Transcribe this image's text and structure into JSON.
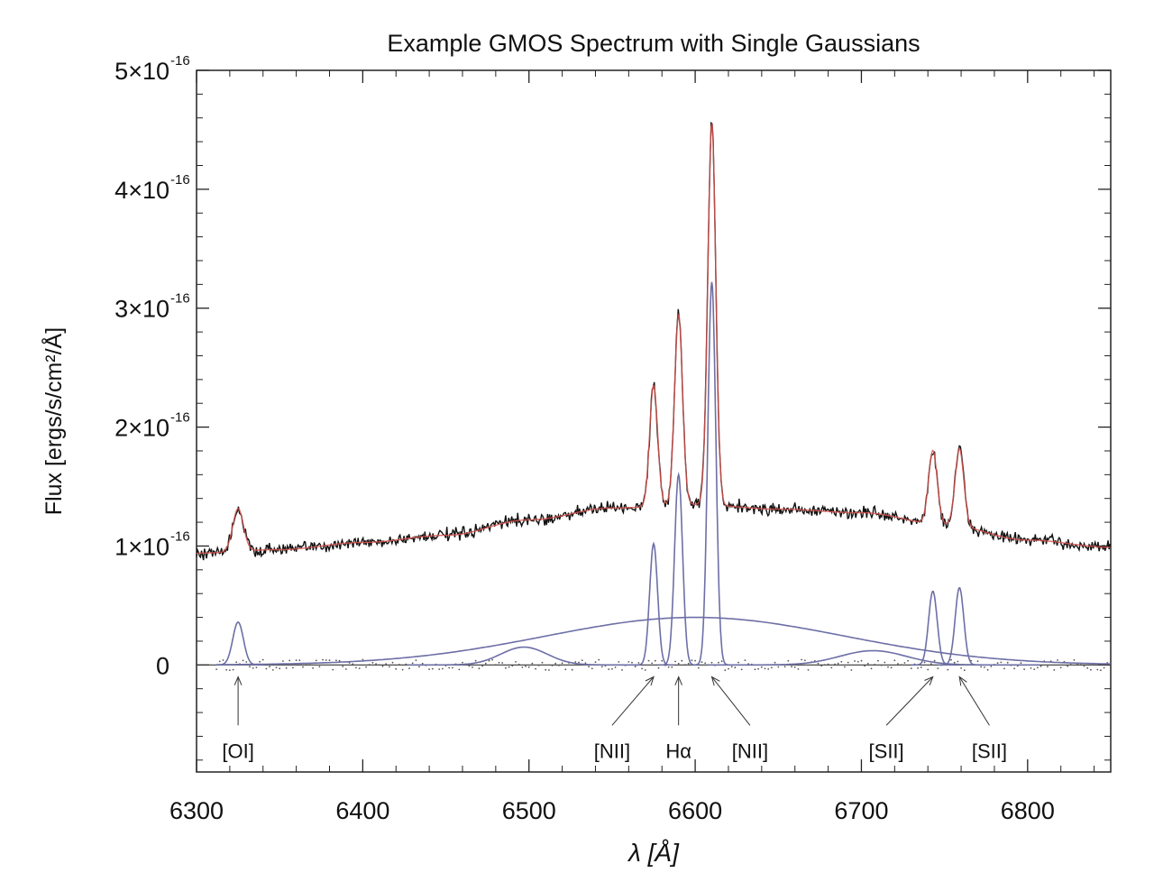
{
  "chart_data": {
    "type": "line",
    "title": "Example GMOS Spectrum with Single Gaussians",
    "xlabel": "λ [Å]",
    "ylabel": "Flux [ergs/s/cm²/Å]",
    "xlim": [
      6300,
      6850
    ],
    "ylim": [
      -0.9,
      5.0
    ],
    "y_unit_exponent": "-16",
    "x_ticks": [
      {
        "value": 6300,
        "label": "6300"
      },
      {
        "value": 6400,
        "label": "6400"
      },
      {
        "value": 6500,
        "label": "6500"
      },
      {
        "value": 6600,
        "label": "6600"
      },
      {
        "value": 6700,
        "label": "6700"
      },
      {
        "value": 6800,
        "label": "6800"
      }
    ],
    "y_ticks": [
      {
        "value": 0,
        "label": "0",
        "exp": ""
      },
      {
        "value": 1,
        "label": "1×10",
        "exp": "-16"
      },
      {
        "value": 2,
        "label": "2×10",
        "exp": "-16"
      },
      {
        "value": 3,
        "label": "3×10",
        "exp": "-16"
      },
      {
        "value": 4,
        "label": "4×10",
        "exp": "-16"
      },
      {
        "value": 5,
        "label": "5×10",
        "exp": "-16"
      }
    ],
    "continuum": {
      "x": [
        6300,
        6350,
        6400,
        6450,
        6500,
        6550,
        6600,
        6650,
        6700,
        6750,
        6800,
        6850
      ],
      "y": [
        0.94,
        0.97,
        1.03,
        1.09,
        1.22,
        1.32,
        1.35,
        1.31,
        1.28,
        1.18,
        1.05,
        0.99
      ]
    },
    "components": [
      {
        "line": "[OI]",
        "center": 6325,
        "amplitude": 0.36,
        "sigma": 3.2
      },
      {
        "line": "[NII]",
        "center": 6575,
        "amplitude": 1.02,
        "sigma": 2.4
      },
      {
        "line": "Hα",
        "center": 6590,
        "amplitude": 1.6,
        "sigma": 2.4
      },
      {
        "line": "[NII]",
        "center": 6610,
        "amplitude": 3.22,
        "sigma": 2.4
      },
      {
        "line": "[SII]",
        "center": 6743,
        "amplitude": 0.62,
        "sigma": 2.6
      },
      {
        "line": "[SII]",
        "center": 6759,
        "amplitude": 0.65,
        "sigma": 2.6
      },
      {
        "line": "broad",
        "center": 6600,
        "amplitude": 0.4,
        "sigma": 90
      },
      {
        "line": "broad",
        "center": 6497,
        "amplitude": 0.15,
        "sigma": 14
      },
      {
        "line": "broad",
        "center": 6707,
        "amplitude": 0.12,
        "sigma": 20
      }
    ],
    "line_labels": [
      {
        "label": "[OI]",
        "x": 6325,
        "tip_x": 6325
      },
      {
        "label": "[NII]",
        "x": 6550,
        "tip_x": 6575
      },
      {
        "label": "Hα",
        "x": 6590,
        "tip_x": 6590
      },
      {
        "label": "[NII]",
        "x": 6633,
        "tip_x": 6610
      },
      {
        "label": "[SII]",
        "x": 6715,
        "tip_x": 6743
      },
      {
        "label": "[SII]",
        "x": 6777,
        "tip_x": 6759
      }
    ],
    "series": [
      {
        "role": "observed spectrum",
        "color": "#111111"
      },
      {
        "role": "total fit",
        "color": "#d9534f"
      },
      {
        "role": "gaussian components",
        "color": "#6d6fa6"
      },
      {
        "role": "residuals",
        "color": "#555555"
      }
    ],
    "grid": false
  }
}
